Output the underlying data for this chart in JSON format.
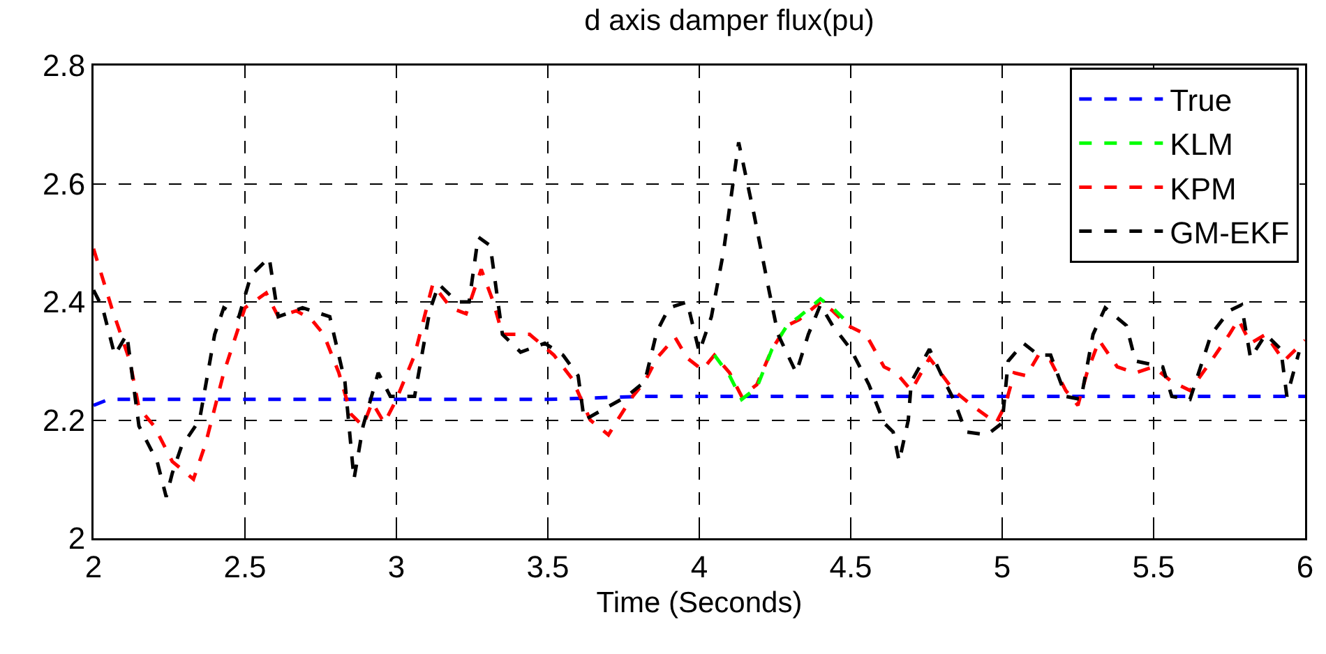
{
  "chart_data": {
    "type": "line",
    "title": "d axis damper flux(pu)",
    "xlabel": "Time (Seconds)",
    "xlim": [
      2,
      6
    ],
    "xticks": [
      2,
      2.5,
      3,
      3.5,
      4,
      4.5,
      5,
      5.5,
      6
    ],
    "ylim": [
      2,
      2.8
    ],
    "yticks": [
      2,
      2.2,
      2.4,
      2.6,
      2.8
    ],
    "grid": true,
    "legend": "top right",
    "line_style": "dashed",
    "marker": "none",
    "series": [
      {
        "name": "True",
        "color": "#0000ff",
        "x": [
          2,
          2.05,
          2.5,
          3,
          3.5,
          3.8,
          4.5,
          5,
          5.5,
          6
        ],
        "values": [
          2.225,
          2.235,
          2.235,
          2.235,
          2.235,
          2.24,
          2.24,
          2.24,
          2.24,
          2.24
        ]
      },
      {
        "name": "KLM",
        "color": "#00ff00",
        "x": [
          4.05,
          4.1,
          4.14,
          4.19,
          4.24,
          4.29,
          4.33,
          4.4,
          4.44,
          4.49
        ],
        "values": [
          2.31,
          2.275,
          2.235,
          2.255,
          2.32,
          2.36,
          2.375,
          2.405,
          2.39,
          2.365
        ]
      },
      {
        "name": "KPM",
        "color": "#ff0000",
        "x": [
          2,
          2.06,
          2.12,
          2.15,
          2.2,
          2.26,
          2.33,
          2.37,
          2.43,
          2.5,
          2.57,
          2.61,
          2.67,
          2.72,
          2.76,
          2.81,
          2.85,
          2.89,
          2.92,
          2.96,
          3,
          3.06,
          3.12,
          3.18,
          3.23,
          3.28,
          3.32,
          3.35,
          3.44,
          3.52,
          3.58,
          3.64,
          3.7,
          3.73,
          3.78,
          3.82,
          3.86,
          3.92,
          3.96,
          4.01,
          4.05,
          4.1,
          4.14,
          4.19,
          4.24,
          4.29,
          4.33,
          4.4,
          4.44,
          4.49,
          4.55,
          4.61,
          4.65,
          4.7,
          4.76,
          4.84,
          4.9,
          4.98,
          5.01,
          5.04,
          5.08,
          5.12,
          5.16,
          5.21,
          5.25,
          5.28,
          5.32,
          5.38,
          5.44,
          5.5,
          5.56,
          5.62,
          5.69,
          5.75,
          5.78,
          5.82,
          5.87,
          5.93,
          6
        ],
        "values": [
          2.49,
          2.39,
          2.3,
          2.22,
          2.19,
          2.13,
          2.1,
          2.16,
          2.28,
          2.39,
          2.415,
          2.375,
          2.385,
          2.37,
          2.345,
          2.28,
          2.21,
          2.19,
          2.23,
          2.195,
          2.235,
          2.31,
          2.43,
          2.39,
          2.38,
          2.455,
          2.4,
          2.345,
          2.345,
          2.31,
          2.27,
          2.2,
          2.175,
          2.2,
          2.24,
          2.265,
          2.305,
          2.34,
          2.305,
          2.285,
          2.31,
          2.28,
          2.24,
          2.26,
          2.32,
          2.36,
          2.37,
          2.4,
          2.385,
          2.36,
          2.345,
          2.29,
          2.28,
          2.25,
          2.305,
          2.25,
          2.225,
          2.195,
          2.225,
          2.28,
          2.275,
          2.31,
          2.3,
          2.25,
          2.225,
          2.28,
          2.335,
          2.29,
          2.28,
          2.29,
          2.265,
          2.25,
          2.3,
          2.345,
          2.37,
          2.33,
          2.345,
          2.3,
          2.335
        ]
      },
      {
        "name": "GM-EKF",
        "color": "#000000",
        "x": [
          2,
          2.03,
          2.07,
          2.11,
          2.15,
          2.21,
          2.24,
          2.26,
          2.29,
          2.35,
          2.4,
          2.43,
          2.48,
          2.52,
          2.58,
          2.61,
          2.69,
          2.78,
          2.83,
          2.86,
          2.89,
          2.94,
          2.98,
          3.06,
          3.11,
          3.14,
          3.2,
          3.24,
          3.27,
          3.31,
          3.35,
          3.41,
          3.49,
          3.55,
          3.6,
          3.62,
          3.69,
          3.76,
          3.82,
          3.86,
          3.9,
          3.96,
          4,
          4.04,
          4.08,
          4.13,
          4.18,
          4.23,
          4.26,
          4.32,
          4.36,
          4.4,
          4.44,
          4.5,
          4.56,
          4.61,
          4.64,
          4.66,
          4.69,
          4.7,
          4.76,
          4.81,
          4.84,
          4.88,
          4.95,
          5,
          5.02,
          5.07,
          5.12,
          5.16,
          5.21,
          5.26,
          5.3,
          5.34,
          5.41,
          5.44,
          5.53,
          5.56,
          5.62,
          5.69,
          5.75,
          5.79,
          5.82,
          5.87,
          5.92,
          5.94,
          5.98
        ],
        "values": [
          2.42,
          2.39,
          2.31,
          2.345,
          2.19,
          2.13,
          2.07,
          2.11,
          2.155,
          2.2,
          2.345,
          2.39,
          2.375,
          2.445,
          2.475,
          2.375,
          2.39,
          2.375,
          2.265,
          2.1,
          2.19,
          2.28,
          2.24,
          2.24,
          2.385,
          2.43,
          2.4,
          2.4,
          2.51,
          2.495,
          2.345,
          2.315,
          2.33,
          2.31,
          2.275,
          2.2,
          2.22,
          2.24,
          2.265,
          2.35,
          2.39,
          2.4,
          2.315,
          2.375,
          2.485,
          2.67,
          2.55,
          2.42,
          2.345,
          2.28,
          2.345,
          2.395,
          2.36,
          2.32,
          2.26,
          2.195,
          2.18,
          2.13,
          2.2,
          2.265,
          2.32,
          2.265,
          2.235,
          2.18,
          2.175,
          2.195,
          2.3,
          2.33,
          2.31,
          2.31,
          2.24,
          2.235,
          2.345,
          2.39,
          2.36,
          2.3,
          2.29,
          2.24,
          2.235,
          2.345,
          2.385,
          2.395,
          2.305,
          2.345,
          2.32,
          2.24,
          2.315
        ]
      }
    ]
  }
}
